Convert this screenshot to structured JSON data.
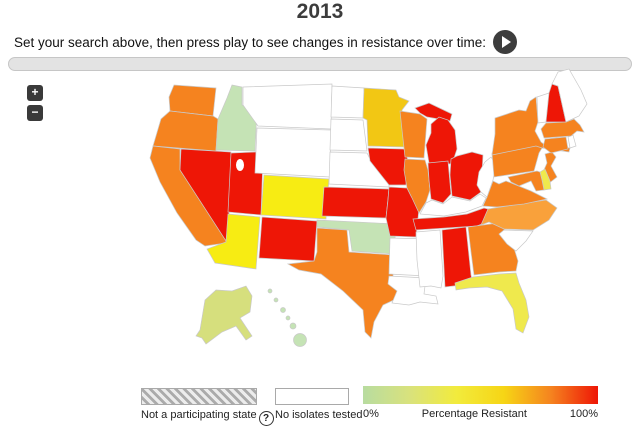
{
  "header": {
    "title": "2013",
    "instruction": "Set your search above, then press play to see changes in resistance over time:"
  },
  "zoom_controls": {
    "zoom_in_label": "+",
    "zoom_out_label": "−"
  },
  "legend": {
    "not_participating_label": "Not a participating state",
    "help_symbol": "?",
    "no_isolates_label": "No isolates tested",
    "gradient_min": "0%",
    "gradient_label": "Percentage Resistant",
    "gradient_max": "100%"
  },
  "colors": {
    "red": "#EE1606",
    "orange": "#F5831F",
    "light_orange": "#F9A13B",
    "gold": "#F2C714",
    "yellow": "#F7EC13",
    "pale_yellow": "#EFE94D",
    "pale_green": "#C5E3B5",
    "yellow_green": "#D6DF7D",
    "white": "#FFFFFF",
    "border": "#C9C9C9"
  },
  "gradient_stops": [
    "#B8DCA0",
    "#D9E27C",
    "#F2EB3C",
    "#F6D515",
    "#F5831F",
    "#EE1606"
  ],
  "chart_data": {
    "type": "choropleth-map",
    "title": "2013",
    "value_label": "Percentage Resistant",
    "value_range": [
      "0%",
      "100%"
    ],
    "states": [
      {
        "abbr": "WA",
        "name": "Washington",
        "category": "orange"
      },
      {
        "abbr": "OR",
        "name": "Oregon",
        "category": "orange"
      },
      {
        "abbr": "CA",
        "name": "California",
        "category": "orange"
      },
      {
        "abbr": "ID",
        "name": "Idaho",
        "category": "pale_green"
      },
      {
        "abbr": "NV",
        "name": "Nevada",
        "category": "red"
      },
      {
        "abbr": "UT",
        "name": "Utah",
        "category": "red"
      },
      {
        "abbr": "AZ",
        "name": "Arizona",
        "category": "yellow"
      },
      {
        "abbr": "MT",
        "name": "Montana",
        "category": "white"
      },
      {
        "abbr": "WY",
        "name": "Wyoming",
        "category": "white"
      },
      {
        "abbr": "CO",
        "name": "Colorado",
        "category": "yellow"
      },
      {
        "abbr": "NM",
        "name": "New Mexico",
        "category": "red"
      },
      {
        "abbr": "ND",
        "name": "North Dakota",
        "category": "white"
      },
      {
        "abbr": "SD",
        "name": "South Dakota",
        "category": "white"
      },
      {
        "abbr": "NE",
        "name": "Nebraska",
        "category": "white"
      },
      {
        "abbr": "KS",
        "name": "Kansas",
        "category": "red"
      },
      {
        "abbr": "OK",
        "name": "Oklahoma",
        "category": "pale_green"
      },
      {
        "abbr": "TX",
        "name": "Texas",
        "category": "orange"
      },
      {
        "abbr": "MN",
        "name": "Minnesota",
        "category": "gold"
      },
      {
        "abbr": "IA",
        "name": "Iowa",
        "category": "red"
      },
      {
        "abbr": "MO",
        "name": "Missouri",
        "category": "red"
      },
      {
        "abbr": "AR",
        "name": "Arkansas",
        "category": "white"
      },
      {
        "abbr": "LA",
        "name": "Louisiana",
        "category": "white"
      },
      {
        "abbr": "WI",
        "name": "Wisconsin",
        "category": "orange"
      },
      {
        "abbr": "MI",
        "name": "Michigan",
        "category": "red"
      },
      {
        "abbr": "IL",
        "name": "Illinois",
        "category": "orange"
      },
      {
        "abbr": "IN",
        "name": "Indiana",
        "category": "red"
      },
      {
        "abbr": "OH",
        "name": "Ohio",
        "category": "red"
      },
      {
        "abbr": "KY",
        "name": "Kentucky",
        "category": "white"
      },
      {
        "abbr": "TN",
        "name": "Tennessee",
        "category": "red"
      },
      {
        "abbr": "MS",
        "name": "Mississippi",
        "category": "white"
      },
      {
        "abbr": "AL",
        "name": "Alabama",
        "category": "red"
      },
      {
        "abbr": "GA",
        "name": "Georgia",
        "category": "orange"
      },
      {
        "abbr": "FL",
        "name": "Florida",
        "category": "pale_yellow"
      },
      {
        "abbr": "SC",
        "name": "South Carolina",
        "category": "white"
      },
      {
        "abbr": "NC",
        "name": "North Carolina",
        "category": "light_orange"
      },
      {
        "abbr": "VA",
        "name": "Virginia",
        "category": "orange"
      },
      {
        "abbr": "WV",
        "name": "West Virginia",
        "category": "white"
      },
      {
        "abbr": "PA",
        "name": "Pennsylvania",
        "category": "orange"
      },
      {
        "abbr": "NY",
        "name": "New York",
        "category": "orange"
      },
      {
        "abbr": "NJ",
        "name": "New Jersey",
        "category": "orange"
      },
      {
        "abbr": "DE",
        "name": "Delaware",
        "category": "pale_yellow"
      },
      {
        "abbr": "MD",
        "name": "Maryland",
        "category": "orange"
      },
      {
        "abbr": "CT",
        "name": "Connecticut",
        "category": "orange"
      },
      {
        "abbr": "RI",
        "name": "Rhode Island",
        "category": "white"
      },
      {
        "abbr": "MA",
        "name": "Massachusetts",
        "category": "orange"
      },
      {
        "abbr": "VT",
        "name": "Vermont",
        "category": "white"
      },
      {
        "abbr": "NH",
        "name": "New Hampshire",
        "category": "red"
      },
      {
        "abbr": "ME",
        "name": "Maine",
        "category": "white"
      },
      {
        "abbr": "AK",
        "name": "Alaska",
        "category": "yellow_green"
      },
      {
        "abbr": "HI",
        "name": "Hawaii",
        "category": "pale_green"
      }
    ]
  }
}
